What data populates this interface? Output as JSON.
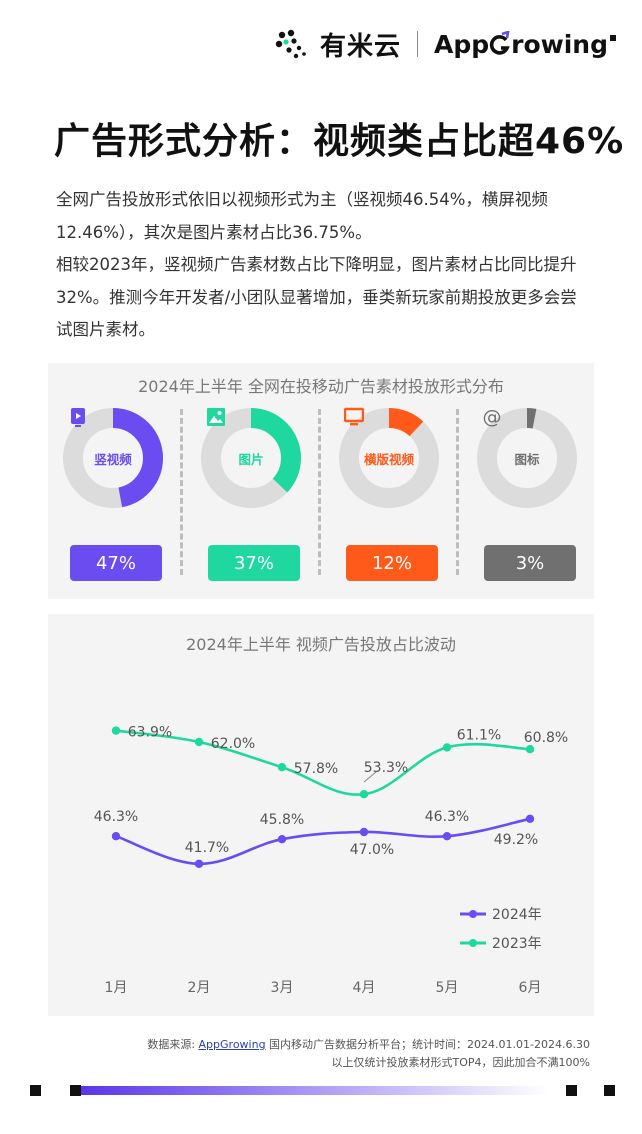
{
  "header": {
    "brand_cn": "有米云",
    "brand_en_prefix": "App",
    "brand_en_suffix": "rowing"
  },
  "title": "广告形式分析：视频类占比超46%",
  "description": [
    "全网广告投放形式依旧以视频形式为主（竖视频46.54%，横屏视频12.46%），其次是图片素材占比36.75%。",
    "相较2023年，竖视频广告素材数占比下降明显，图片素材占比同比提升32%。推测今年开发者/小团队显著增加，垂类新玩家前期投放更多会尝试图片素材。"
  ],
  "colors": {
    "purple": "#6a4cf0",
    "green": "#1fd8a0",
    "orange": "#ff5a1a",
    "gray": "#707070",
    "track": "#dcdcdc"
  },
  "chart_data": [
    {
      "type": "pie",
      "title": "2024年上半年 全网在投移动广告素材投放形式分布",
      "items": [
        {
          "label": "竖视频",
          "value": 47,
          "display": "47%",
          "color": "#6a4cf0",
          "icon": "video-phone-icon"
        },
        {
          "label": "图片",
          "value": 37,
          "display": "37%",
          "color": "#1fd8a0",
          "icon": "image-icon"
        },
        {
          "label": "横版视频",
          "value": 12,
          "display": "12%",
          "color": "#ff5a1a",
          "icon": "monitor-icon"
        },
        {
          "label": "图标",
          "value": 3,
          "display": "3%",
          "color": "#707070",
          "icon": "at-icon"
        }
      ]
    },
    {
      "type": "line",
      "title": "2024年上半年 视频广告投放占比波动",
      "categories": [
        "1月",
        "2月",
        "3月",
        "4月",
        "5月",
        "6月"
      ],
      "ylim": [
        0,
        100
      ],
      "series": [
        {
          "name": "2024年",
          "color": "#6a4cf0",
          "values": [
            46.3,
            41.7,
            45.8,
            47.0,
            46.3,
            49.2
          ],
          "labels": [
            "46.3%",
            "41.7%",
            "45.8%",
            "47.0%",
            "46.3%",
            "49.2%"
          ]
        },
        {
          "name": "2023年",
          "color": "#1fd8a0",
          "values": [
            63.9,
            62.0,
            57.8,
            53.3,
            61.1,
            60.8
          ],
          "labels": [
            "63.9%",
            "62.0%",
            "57.8%",
            "53.3%",
            "61.1%",
            "60.8%"
          ]
        }
      ]
    }
  ],
  "footer": {
    "line1_prefix": "数据来源: ",
    "line1_link": "AppGrowing",
    "line1_suffix": " 国内移动广告数据分析平台；统计时间：2024.01.01-2024.6.30",
    "line2": "以上仅统计投放素材形式TOP4，因此加合不满100%"
  }
}
